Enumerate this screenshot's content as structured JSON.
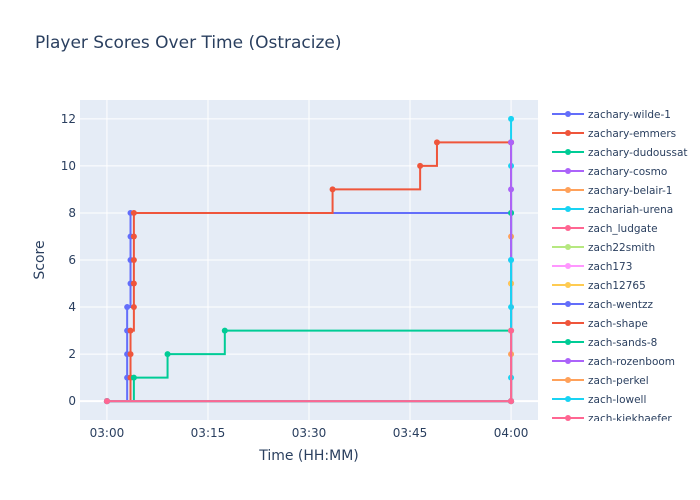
{
  "chart_data": {
    "type": "line",
    "line_shape": "step",
    "title": "Player Scores Over Time (Ostracize)",
    "xlabel": "Time (HH:MM)",
    "ylabel": "Score",
    "xlim": [
      "02:56",
      "04:04"
    ],
    "ylim": [
      -0.8,
      12.8
    ],
    "x_ticks": [
      "03:00",
      "03:15",
      "03:30",
      "03:45",
      "04:00"
    ],
    "y_ticks": [
      0,
      2,
      4,
      6,
      8,
      10,
      12
    ],
    "grid": true,
    "legend_position": "right",
    "series": [
      {
        "name": "zachary-wilde-1",
        "color": "#636efa",
        "x": [
          "03:00",
          "03:03",
          "03:03",
          "03:03",
          "03:03",
          "03:03.5",
          "03:03.5",
          "03:03.5",
          "03:03.5",
          "04:00"
        ],
        "y": [
          0,
          1,
          2,
          3,
          4,
          5,
          6,
          7,
          8,
          8
        ]
      },
      {
        "name": "zachary-emmers",
        "color": "#ef553b",
        "x": [
          "03:00",
          "03:03.5",
          "03:03.5",
          "03:03.5",
          "03:04",
          "03:04",
          "03:04",
          "03:04",
          "03:04",
          "03:33.5",
          "03:46.5",
          "03:49",
          "04:00"
        ],
        "y": [
          0,
          1,
          2,
          3,
          4,
          5,
          6,
          7,
          8,
          9,
          10,
          11,
          11
        ]
      },
      {
        "name": "zachary-dudoussat",
        "color": "#00cc96",
        "x": [
          "03:00",
          "03:04",
          "03:09",
          "03:17.5",
          "04:00"
        ],
        "y": [
          0,
          1,
          2,
          3,
          3
        ]
      },
      {
        "name": "zachary-cosmo",
        "color": "#ab63fa",
        "x": [
          "03:00",
          "04:00",
          "04:00"
        ],
        "y": [
          0,
          0,
          9
        ]
      },
      {
        "name": "zachary-belair-1",
        "color": "#ffa15a",
        "x": [
          "03:00",
          "04:00",
          "04:00"
        ],
        "y": [
          0,
          0,
          7
        ]
      },
      {
        "name": "zachariah-urena",
        "color": "#19d3f3",
        "x": [
          "03:00",
          "04:00",
          "04:00",
          "04:00",
          "04:00",
          "04:00",
          "04:00"
        ],
        "y": [
          0,
          0,
          1,
          4,
          6,
          10,
          12
        ]
      },
      {
        "name": "zach_ludgate",
        "color": "#ff6692",
        "x": [
          "03:00",
          "04:00",
          "04:00"
        ],
        "y": [
          0,
          0,
          5
        ]
      },
      {
        "name": "zach22smith",
        "color": "#b6e880",
        "x": [
          "03:00",
          "04:00",
          "04:00"
        ],
        "y": [
          0,
          0,
          3
        ]
      },
      {
        "name": "zach173",
        "color": "#ff97ff",
        "x": [
          "03:00",
          "04:00",
          "04:00"
        ],
        "y": [
          0,
          0,
          6
        ]
      },
      {
        "name": "zach12765",
        "color": "#fecb52",
        "x": [
          "03:00",
          "04:00",
          "04:00"
        ],
        "y": [
          0,
          0,
          5
        ]
      },
      {
        "name": "zach-wentzz",
        "color": "#636efa",
        "x": [
          "03:00",
          "04:00",
          "04:00"
        ],
        "y": [
          0,
          0,
          8
        ]
      },
      {
        "name": "zach-shape",
        "color": "#ef553b",
        "x": [
          "03:00",
          "04:00",
          "04:00"
        ],
        "y": [
          0,
          0,
          11
        ]
      },
      {
        "name": "zach-sands-8",
        "color": "#00cc96",
        "x": [
          "03:00",
          "04:00",
          "04:00"
        ],
        "y": [
          0,
          0,
          8
        ]
      },
      {
        "name": "zach-rozenboom",
        "color": "#ab63fa",
        "x": [
          "03:00",
          "04:00",
          "04:00"
        ],
        "y": [
          0,
          0,
          11
        ]
      },
      {
        "name": "zach-perkel",
        "color": "#ffa15a",
        "x": [
          "03:00",
          "04:00",
          "04:00"
        ],
        "y": [
          0,
          0,
          2
        ]
      },
      {
        "name": "zach-lowell",
        "color": "#19d3f3",
        "x": [
          "03:00",
          "04:00",
          "04:00"
        ],
        "y": [
          0,
          0,
          6
        ]
      },
      {
        "name": "zach-kiekhaefer",
        "color": "#ff6692",
        "x": [
          "03:00",
          "04:00",
          "04:00"
        ],
        "y": [
          0,
          0,
          3
        ]
      }
    ]
  }
}
